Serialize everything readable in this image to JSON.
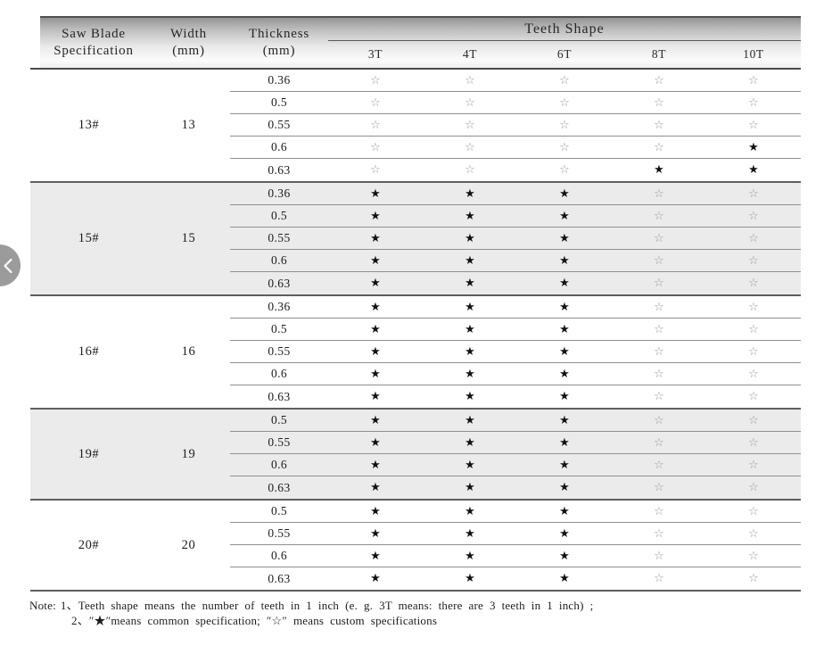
{
  "colors": {
    "common_star": "#121212",
    "custom_star": "#9a9a9a",
    "shaded_section_bg": "#ebebeb",
    "carousel_button_bg": "#9b9b9b"
  },
  "carousel": {
    "prev_icon": "chevron-left"
  },
  "table": {
    "header": {
      "col1_line1": "Saw Blade",
      "col1_line2": "Specification",
      "col2_line1": "Width",
      "col2_line2": "(mm)",
      "col3_line1": "Thickness",
      "col3_line2": "(mm)",
      "teeth_shape": "Teeth Shape",
      "teeth_cols": [
        "3T",
        "4T",
        "6T",
        "8T",
        "10T"
      ]
    },
    "legend": {
      "common": "★",
      "custom": "☆"
    },
    "sections": [
      {
        "spec": "13#",
        "width": "13",
        "shaded": false,
        "rows": [
          {
            "thickness": "0.36",
            "stars": [
              "☆",
              "☆",
              "☆",
              "☆",
              "☆"
            ]
          },
          {
            "thickness": "0.5",
            "stars": [
              "☆",
              "☆",
              "☆",
              "☆",
              "☆"
            ]
          },
          {
            "thickness": "0.55",
            "stars": [
              "☆",
              "☆",
              "☆",
              "☆",
              "☆"
            ]
          },
          {
            "thickness": "0.6",
            "stars": [
              "☆",
              "☆",
              "☆",
              "☆",
              "★"
            ]
          },
          {
            "thickness": "0.63",
            "stars": [
              "☆",
              "☆",
              "☆",
              "★",
              "★"
            ]
          }
        ]
      },
      {
        "spec": "15#",
        "width": "15",
        "shaded": true,
        "rows": [
          {
            "thickness": "0.36",
            "stars": [
              "★",
              "★",
              "★",
              "☆",
              "☆"
            ]
          },
          {
            "thickness": "0.5",
            "stars": [
              "★",
              "★",
              "★",
              "☆",
              "☆"
            ]
          },
          {
            "thickness": "0.55",
            "stars": [
              "★",
              "★",
              "★",
              "☆",
              "☆"
            ]
          },
          {
            "thickness": "0.6",
            "stars": [
              "★",
              "★",
              "★",
              "☆",
              "☆"
            ]
          },
          {
            "thickness": "0.63",
            "stars": [
              "★",
              "★",
              "★",
              "☆",
              "☆"
            ]
          }
        ]
      },
      {
        "spec": "16#",
        "width": "16",
        "shaded": false,
        "rows": [
          {
            "thickness": "0.36",
            "stars": [
              "★",
              "★",
              "★",
              "☆",
              "☆"
            ]
          },
          {
            "thickness": "0.5",
            "stars": [
              "★",
              "★",
              "★",
              "☆",
              "☆"
            ]
          },
          {
            "thickness": "0.55",
            "stars": [
              "★",
              "★",
              "★",
              "☆",
              "☆"
            ]
          },
          {
            "thickness": "0.6",
            "stars": [
              "★",
              "★",
              "★",
              "☆",
              "☆"
            ]
          },
          {
            "thickness": "0.63",
            "stars": [
              "★",
              "★",
              "★",
              "☆",
              "☆"
            ]
          }
        ]
      },
      {
        "spec": "19#",
        "width": "19",
        "shaded": true,
        "rows": [
          {
            "thickness": "0.5",
            "stars": [
              "★",
              "★",
              "★",
              "☆",
              "☆"
            ]
          },
          {
            "thickness": "0.55",
            "stars": [
              "★",
              "★",
              "★",
              "☆",
              "☆"
            ]
          },
          {
            "thickness": "0.6",
            "stars": [
              "★",
              "★",
              "★",
              "☆",
              "☆"
            ]
          },
          {
            "thickness": "0.63",
            "stars": [
              "★",
              "★",
              "★",
              "☆",
              "☆"
            ]
          }
        ]
      },
      {
        "spec": "20#",
        "width": "20",
        "shaded": false,
        "rows": [
          {
            "thickness": "0.5",
            "stars": [
              "★",
              "★",
              "★",
              "☆",
              "☆"
            ]
          },
          {
            "thickness": "0.55",
            "stars": [
              "★",
              "★",
              "★",
              "☆",
              "☆"
            ]
          },
          {
            "thickness": "0.6",
            "stars": [
              "★",
              "★",
              "★",
              "☆",
              "☆"
            ]
          },
          {
            "thickness": "0.63",
            "stars": [
              "★",
              "★",
              "★",
              "☆",
              "☆"
            ]
          }
        ]
      }
    ],
    "note": {
      "prefix": "Note:",
      "line1": "1、Teeth shape means the number of teeth in 1 inch (e. g. 3T  means: there are 3 teeth in 1 inch) ;",
      "line2": "2、″★″means common specification;  ″☆″ means custom specifications"
    }
  }
}
